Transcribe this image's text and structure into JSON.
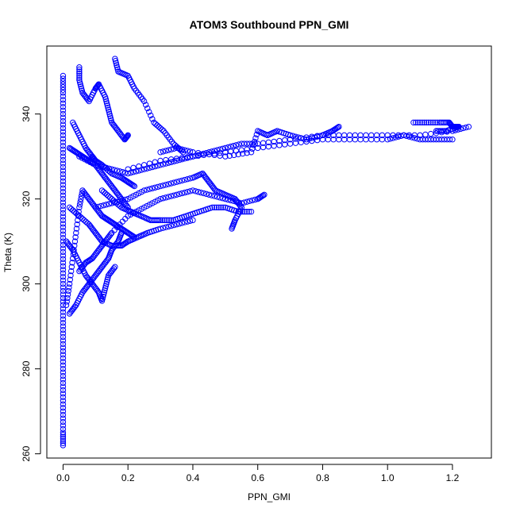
{
  "chart_data": {
    "type": "scatter",
    "title": "ATOM3 Southbound PPN_GMI",
    "xlabel": "PPN_GMI",
    "ylabel": "Theta (K)",
    "xlim": [
      -0.05,
      1.32
    ],
    "ylim": [
      259,
      356
    ],
    "xticks": [
      "0.0",
      "0.2",
      "0.4",
      "0.6",
      "0.8",
      "1.0",
      "1.2"
    ],
    "xtick_values": [
      0,
      0.2,
      0.4,
      0.6,
      0.8,
      1.0,
      1.2
    ],
    "yticks": [
      "260",
      "280",
      "300",
      "320",
      "340"
    ],
    "ytick_values": [
      260,
      280,
      300,
      320,
      340
    ],
    "grid": false,
    "marker": "open-circle",
    "color": "#0000ff",
    "series": [
      {
        "values": [
          [
            0.0,
            262
          ],
          [
            0.0,
            265
          ],
          [
            0.0,
            270
          ],
          [
            0.0,
            275
          ],
          [
            0.0,
            280
          ],
          [
            0.0,
            285
          ],
          [
            0.0,
            290
          ],
          [
            0.0,
            295
          ],
          [
            0.0,
            300
          ],
          [
            0.0,
            305
          ],
          [
            0.0,
            310
          ],
          [
            0.0,
            315
          ],
          [
            0.0,
            320
          ],
          [
            0.0,
            325
          ],
          [
            0.0,
            330
          ],
          [
            0.0,
            335
          ],
          [
            0.0,
            340
          ],
          [
            0.0,
            345
          ],
          [
            0.0,
            349
          ]
        ]
      },
      {
        "values": [
          [
            0.01,
            295
          ],
          [
            0.02,
            300
          ],
          [
            0.03,
            306
          ],
          [
            0.04,
            312
          ],
          [
            0.05,
            318
          ],
          [
            0.06,
            322
          ],
          [
            0.08,
            320
          ],
          [
            0.1,
            318
          ],
          [
            0.12,
            316
          ],
          [
            0.14,
            315
          ],
          [
            0.16,
            314
          ],
          [
            0.18,
            313
          ],
          [
            0.2,
            312
          ],
          [
            0.22,
            311
          ]
        ]
      },
      {
        "values": [
          [
            0.02,
            293
          ],
          [
            0.04,
            295
          ],
          [
            0.06,
            298
          ],
          [
            0.08,
            300
          ],
          [
            0.1,
            302
          ],
          [
            0.12,
            304
          ],
          [
            0.14,
            306
          ],
          [
            0.15,
            308
          ],
          [
            0.17,
            310
          ],
          [
            0.18,
            312
          ]
        ]
      },
      {
        "values": [
          [
            0.05,
            303
          ],
          [
            0.07,
            305
          ],
          [
            0.09,
            306
          ],
          [
            0.11,
            308
          ],
          [
            0.13,
            310
          ],
          [
            0.15,
            312
          ],
          [
            0.2,
            316
          ],
          [
            0.25,
            318
          ],
          [
            0.3,
            320
          ],
          [
            0.35,
            321
          ],
          [
            0.4,
            322
          ],
          [
            0.45,
            321
          ],
          [
            0.5,
            320
          ],
          [
            0.55,
            319
          ],
          [
            0.6,
            320
          ],
          [
            0.62,
            321
          ]
        ]
      },
      {
        "values": [
          [
            0.1,
            318
          ],
          [
            0.15,
            319
          ],
          [
            0.2,
            320
          ],
          [
            0.25,
            322
          ],
          [
            0.3,
            323
          ],
          [
            0.35,
            324
          ],
          [
            0.4,
            325
          ],
          [
            0.43,
            326
          ],
          [
            0.45,
            324
          ],
          [
            0.47,
            322
          ],
          [
            0.5,
            321
          ],
          [
            0.53,
            320
          ],
          [
            0.55,
            318
          ],
          [
            0.53,
            315
          ],
          [
            0.52,
            313
          ]
        ]
      },
      {
        "values": [
          [
            0.05,
            330
          ],
          [
            0.1,
            328
          ],
          [
            0.15,
            327
          ],
          [
            0.2,
            326
          ],
          [
            0.25,
            327
          ],
          [
            0.3,
            328
          ],
          [
            0.35,
            329
          ],
          [
            0.4,
            330
          ],
          [
            0.45,
            331
          ],
          [
            0.5,
            332
          ],
          [
            0.55,
            333
          ],
          [
            0.6,
            333
          ],
          [
            0.7,
            334
          ],
          [
            0.8,
            335
          ],
          [
            0.9,
            335
          ],
          [
            1.0,
            335
          ],
          [
            1.1,
            335
          ],
          [
            1.2,
            336
          ],
          [
            1.25,
            337
          ]
        ]
      },
      {
        "values": [
          [
            0.3,
            331
          ],
          [
            0.35,
            332
          ],
          [
            0.4,
            331
          ],
          [
            0.5,
            330
          ],
          [
            0.58,
            331
          ],
          [
            0.6,
            336
          ],
          [
            0.63,
            335
          ],
          [
            0.66,
            336
          ],
          [
            0.7,
            335
          ],
          [
            0.75,
            334
          ],
          [
            0.8,
            335
          ],
          [
            0.83,
            336
          ],
          [
            0.85,
            337
          ]
        ]
      },
      {
        "values": [
          [
            0.2,
            327
          ],
          [
            0.3,
            329
          ],
          [
            0.4,
            330
          ],
          [
            0.5,
            331
          ],
          [
            0.6,
            332
          ],
          [
            0.7,
            333
          ],
          [
            0.8,
            334
          ],
          [
            0.9,
            334
          ],
          [
            1.0,
            334
          ],
          [
            1.05,
            335
          ],
          [
            1.1,
            334
          ],
          [
            1.15,
            334
          ],
          [
            1.2,
            334
          ]
        ]
      },
      {
        "values": [
          [
            1.08,
            338
          ],
          [
            1.12,
            338
          ],
          [
            1.16,
            338
          ],
          [
            1.19,
            338
          ],
          [
            1.2,
            337
          ],
          [
            1.21,
            337
          ],
          [
            1.22,
            337
          ],
          [
            1.18,
            336
          ],
          [
            1.15,
            336
          ]
        ]
      },
      {
        "values": [
          [
            0.05,
            351
          ],
          [
            0.05,
            348
          ],
          [
            0.06,
            345
          ],
          [
            0.08,
            343
          ],
          [
            0.1,
            346
          ],
          [
            0.11,
            347
          ],
          [
            0.13,
            344
          ],
          [
            0.14,
            341
          ],
          [
            0.15,
            338
          ],
          [
            0.17,
            336
          ],
          [
            0.19,
            334
          ],
          [
            0.2,
            335
          ]
        ]
      },
      {
        "values": [
          [
            0.16,
            353
          ],
          [
            0.17,
            350
          ],
          [
            0.2,
            349
          ],
          [
            0.22,
            346
          ],
          [
            0.25,
            343
          ],
          [
            0.28,
            338
          ],
          [
            0.31,
            336
          ],
          [
            0.34,
            333
          ],
          [
            0.37,
            331
          ]
        ]
      },
      {
        "values": [
          [
            0.03,
            338
          ],
          [
            0.05,
            335
          ],
          [
            0.07,
            332
          ],
          [
            0.09,
            330
          ],
          [
            0.1,
            329
          ],
          [
            0.12,
            328
          ],
          [
            0.15,
            326
          ],
          [
            0.18,
            325
          ],
          [
            0.2,
            324
          ],
          [
            0.22,
            323
          ]
        ]
      },
      {
        "values": [
          [
            0.02,
            318
          ],
          [
            0.05,
            316
          ],
          [
            0.08,
            314
          ],
          [
            0.1,
            312
          ],
          [
            0.12,
            310
          ],
          [
            0.15,
            309
          ],
          [
            0.18,
            309
          ],
          [
            0.2,
            310
          ],
          [
            0.23,
            311
          ],
          [
            0.26,
            312
          ],
          [
            0.3,
            313
          ],
          [
            0.35,
            314
          ],
          [
            0.4,
            315
          ]
        ]
      },
      {
        "values": [
          [
            0.01,
            310
          ],
          [
            0.03,
            308
          ],
          [
            0.05,
            305
          ],
          [
            0.07,
            302
          ],
          [
            0.09,
            300
          ],
          [
            0.11,
            298
          ],
          [
            0.12,
            296
          ],
          [
            0.13,
            299
          ],
          [
            0.14,
            302
          ],
          [
            0.16,
            304
          ]
        ]
      },
      {
        "values": [
          [
            0.12,
            322
          ],
          [
            0.15,
            320
          ],
          [
            0.18,
            318
          ],
          [
            0.21,
            317
          ],
          [
            0.24,
            316
          ],
          [
            0.27,
            315
          ],
          [
            0.3,
            315
          ],
          [
            0.34,
            315
          ],
          [
            0.38,
            316
          ],
          [
            0.42,
            317
          ],
          [
            0.46,
            318
          ],
          [
            0.5,
            318
          ],
          [
            0.54,
            317
          ],
          [
            0.58,
            317
          ]
        ]
      },
      {
        "values": [
          [
            0.02,
            332
          ],
          [
            0.04,
            331
          ],
          [
            0.06,
            330
          ],
          [
            0.08,
            329
          ],
          [
            0.1,
            328
          ],
          [
            0.12,
            326
          ],
          [
            0.14,
            324
          ],
          [
            0.16,
            322
          ],
          [
            0.18,
            320
          ],
          [
            0.2,
            318
          ]
        ]
      }
    ]
  }
}
